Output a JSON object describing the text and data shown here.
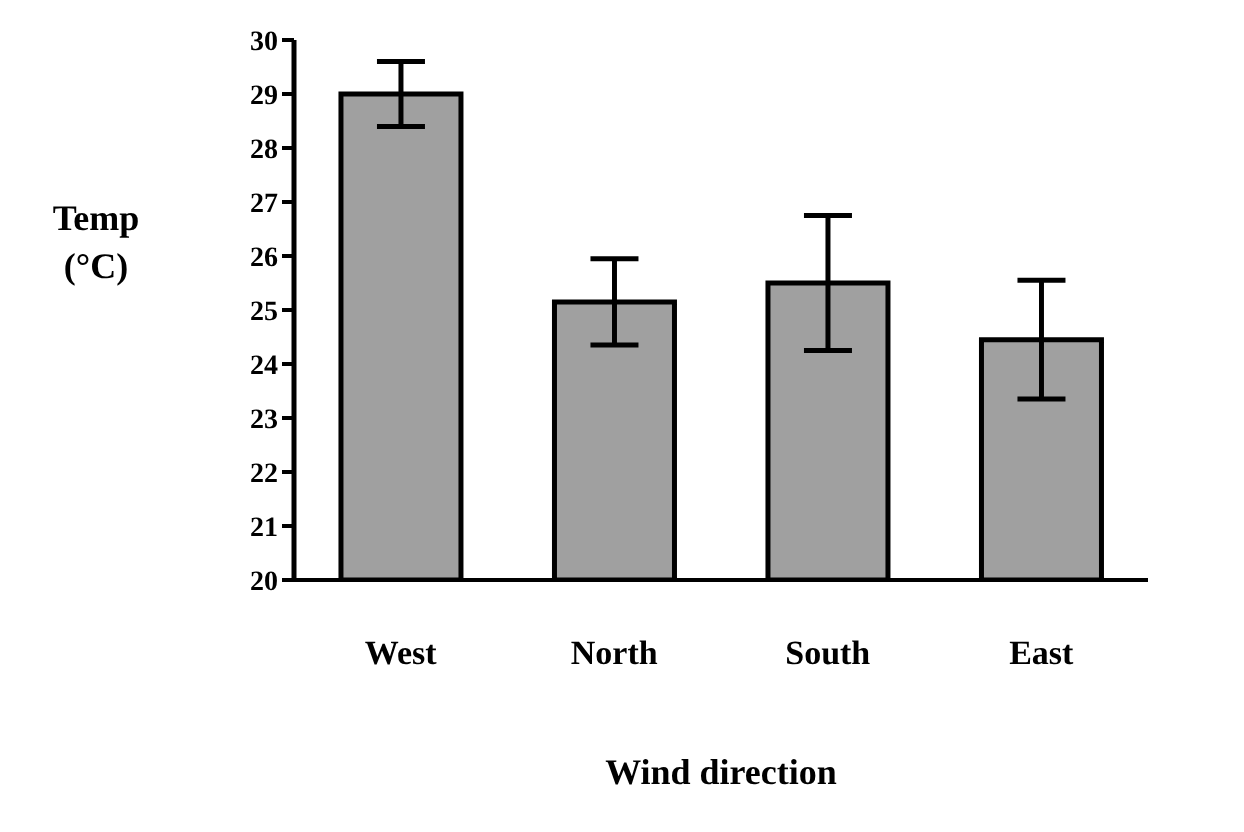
{
  "chart_data": {
    "type": "bar",
    "xlabel": "Wind direction",
    "ylabel": "Temp\n(°C)",
    "categories": [
      "West",
      "North",
      "South",
      "East"
    ],
    "values": [
      29.0,
      25.15,
      25.5,
      24.45
    ],
    "errors": [
      0.6,
      0.8,
      1.25,
      1.1
    ],
    "color": "#a0a0a0",
    "ylim": [
      20,
      30
    ],
    "yticks": [
      20,
      21,
      22,
      23,
      24,
      25,
      26,
      27,
      28,
      29,
      30
    ],
    "grid": false
  }
}
